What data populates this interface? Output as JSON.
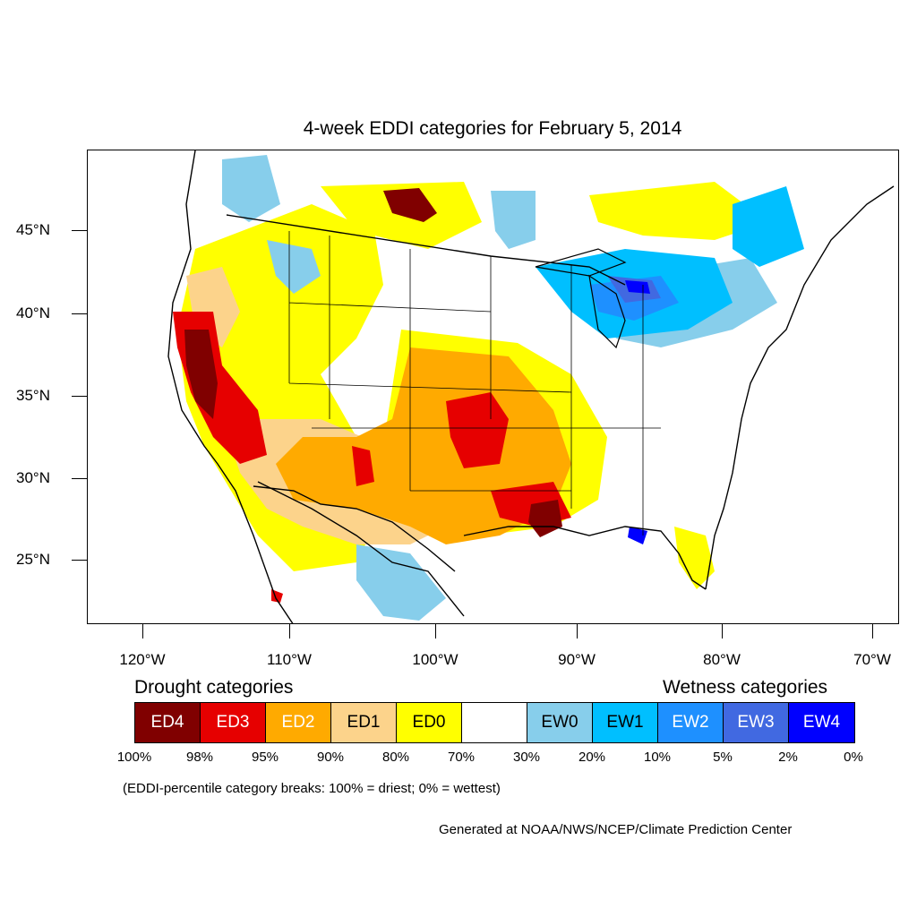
{
  "title": "4-week EDDI categories for February 5, 2014",
  "lat_labels": [
    "45°N",
    "40°N",
    "35°N",
    "30°N",
    "25°N"
  ],
  "lon_labels": [
    "120°W",
    "110°W",
    "100°W",
    "90°W",
    "80°W",
    "70°W"
  ],
  "legend": {
    "drought_heading": "Drought categories",
    "wetness_heading": "Wetness categories",
    "categories": [
      {
        "label": "ED4",
        "color": "#800000",
        "text_color": "#ffffff"
      },
      {
        "label": "ED3",
        "color": "#e60000",
        "text_color": "#ffffff"
      },
      {
        "label": "ED2",
        "color": "#ffaa00",
        "text_color": "#ffffff"
      },
      {
        "label": "ED1",
        "color": "#fcd38b",
        "text_color": "#000000"
      },
      {
        "label": "ED0",
        "color": "#ffff00",
        "text_color": "#000000"
      },
      {
        "label": "",
        "color": "#ffffff",
        "text_color": "#000000"
      },
      {
        "label": "EW0",
        "color": "#87ceeb",
        "text_color": "#000000"
      },
      {
        "label": "EW1",
        "color": "#00bfff",
        "text_color": "#000000"
      },
      {
        "label": "EW2",
        "color": "#1e90ff",
        "text_color": "#ffffff"
      },
      {
        "label": "EW3",
        "color": "#4169e1",
        "text_color": "#ffffff"
      },
      {
        "label": "EW4",
        "color": "#0000ff",
        "text_color": "#ffffff"
      }
    ],
    "percent_breaks": [
      "100%",
      "98%",
      "95%",
      "90%",
      "80%",
      "70%",
      "30%",
      "20%",
      "10%",
      "5%",
      "2%",
      "0%"
    ]
  },
  "note": "(EDDI-percentile category breaks: 100% = driest; 0% = wettest)",
  "credit": "Generated at NOAA/NWS/NCEP/Climate Prediction Center"
}
